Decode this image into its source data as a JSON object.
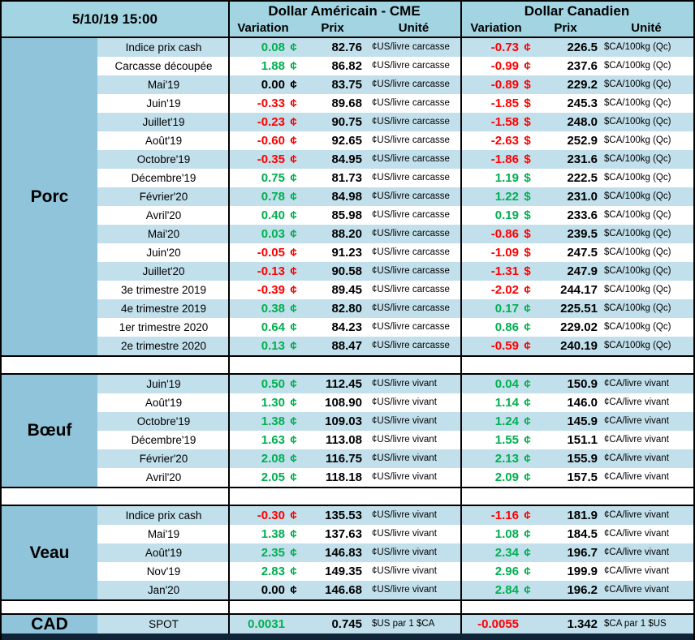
{
  "header": {
    "date": "5/10/19 15:00",
    "groups": [
      {
        "title": "Dollar Américain - CME",
        "columns": [
          "Variation",
          "Prix",
          "Unité"
        ]
      },
      {
        "title": "Dollar Canadien",
        "columns": [
          "Variation",
          "Prix",
          "Unité"
        ]
      }
    ]
  },
  "colors": {
    "positive": "#00B050",
    "negative": "#FF0000",
    "zero": "#000000",
    "header_bg": "#A2D4E2",
    "section_bg": "#8FC4DA",
    "stripe_bg": "#C2E0EC",
    "navy_bar": "#0F2437"
  },
  "chart_data": {
    "type": "table",
    "title": "5/10/19 15:00",
    "column_groups": [
      "Dollar Américain - CME",
      "Dollar Canadien"
    ],
    "columns": [
      "Variation",
      "Prix",
      "Unité",
      "Variation",
      "Prix",
      "Unité"
    ],
    "sections": [
      {
        "name": "Porc",
        "rows": [
          {
            "label": "Indice prix cash",
            "us_var": "0.08",
            "us_sym": "¢",
            "us_prix": "82.76",
            "us_unit": "¢US/livre carcasse",
            "ca_var": "-0.73",
            "ca_sym": "¢",
            "ca_prix": "226.5",
            "ca_unit": "$CA/100kg (Qc)"
          },
          {
            "label": "Carcasse découpée",
            "us_var": "1.88",
            "us_sym": "¢",
            "us_prix": "86.82",
            "us_unit": "¢US/livre carcasse",
            "ca_var": "-0.99",
            "ca_sym": "¢",
            "ca_prix": "237.6",
            "ca_unit": "$CA/100kg (Qc)"
          },
          {
            "label": "Mai'19",
            "us_var": "0.00",
            "us_sym": "¢",
            "us_prix": "83.75",
            "us_unit": "¢US/livre carcasse",
            "ca_var": "-0.89",
            "ca_sym": "$",
            "ca_prix": "229.2",
            "ca_unit": "$CA/100kg (Qc)"
          },
          {
            "label": "Juin'19",
            "us_var": "-0.33",
            "us_sym": "¢",
            "us_prix": "89.68",
            "us_unit": "¢US/livre carcasse",
            "ca_var": "-1.85",
            "ca_sym": "$",
            "ca_prix": "245.3",
            "ca_unit": "$CA/100kg (Qc)"
          },
          {
            "label": "Juillet'19",
            "us_var": "-0.23",
            "us_sym": "¢",
            "us_prix": "90.75",
            "us_unit": "¢US/livre carcasse",
            "ca_var": "-1.58",
            "ca_sym": "$",
            "ca_prix": "248.0",
            "ca_unit": "$CA/100kg (Qc)"
          },
          {
            "label": "Août'19",
            "us_var": "-0.60",
            "us_sym": "¢",
            "us_prix": "92.65",
            "us_unit": "¢US/livre carcasse",
            "ca_var": "-2.63",
            "ca_sym": "$",
            "ca_prix": "252.9",
            "ca_unit": "$CA/100kg (Qc)"
          },
          {
            "label": "Octobre'19",
            "us_var": "-0.35",
            "us_sym": "¢",
            "us_prix": "84.95",
            "us_unit": "¢US/livre carcasse",
            "ca_var": "-1.86",
            "ca_sym": "$",
            "ca_prix": "231.6",
            "ca_unit": "$CA/100kg (Qc)"
          },
          {
            "label": "Décembre'19",
            "us_var": "0.75",
            "us_sym": "¢",
            "us_prix": "81.73",
            "us_unit": "¢US/livre carcasse",
            "ca_var": "1.19",
            "ca_sym": "$",
            "ca_prix": "222.5",
            "ca_unit": "$CA/100kg (Qc)"
          },
          {
            "label": "Février'20",
            "us_var": "0.78",
            "us_sym": "¢",
            "us_prix": "84.98",
            "us_unit": "¢US/livre carcasse",
            "ca_var": "1.22",
            "ca_sym": "$",
            "ca_prix": "231.0",
            "ca_unit": "$CA/100kg (Qc)"
          },
          {
            "label": "Avril'20",
            "us_var": "0.40",
            "us_sym": "¢",
            "us_prix": "85.98",
            "us_unit": "¢US/livre carcasse",
            "ca_var": "0.19",
            "ca_sym": "$",
            "ca_prix": "233.6",
            "ca_unit": "$CA/100kg (Qc)"
          },
          {
            "label": "Mai'20",
            "us_var": "0.03",
            "us_sym": "¢",
            "us_prix": "88.20",
            "us_unit": "¢US/livre carcasse",
            "ca_var": "-0.86",
            "ca_sym": "$",
            "ca_prix": "239.5",
            "ca_unit": "$CA/100kg (Qc)"
          },
          {
            "label": "Juin'20",
            "us_var": "-0.05",
            "us_sym": "¢",
            "us_prix": "91.23",
            "us_unit": "¢US/livre carcasse",
            "ca_var": "-1.09",
            "ca_sym": "$",
            "ca_prix": "247.5",
            "ca_unit": "$CA/100kg (Qc)"
          },
          {
            "label": "Juillet'20",
            "us_var": "-0.13",
            "us_sym": "¢",
            "us_prix": "90.58",
            "us_unit": "¢US/livre carcasse",
            "ca_var": "-1.31",
            "ca_sym": "$",
            "ca_prix": "247.9",
            "ca_unit": "$CA/100kg (Qc)"
          },
          {
            "label": "3e trimestre 2019",
            "us_var": "-0.39",
            "us_sym": "¢",
            "us_prix": "89.45",
            "us_unit": "¢US/livre carcasse",
            "ca_var": "-2.02",
            "ca_sym": "¢",
            "ca_prix": "244.17",
            "ca_unit": "$CA/100kg (Qc)"
          },
          {
            "label": "4e trimestre 2019",
            "us_var": "0.38",
            "us_sym": "¢",
            "us_prix": "82.80",
            "us_unit": "¢US/livre carcasse",
            "ca_var": "0.17",
            "ca_sym": "¢",
            "ca_prix": "225.51",
            "ca_unit": "$CA/100kg (Qc)"
          },
          {
            "label": "1er trimestre 2020",
            "us_var": "0.64",
            "us_sym": "¢",
            "us_prix": "84.23",
            "us_unit": "¢US/livre carcasse",
            "ca_var": "0.86",
            "ca_sym": "¢",
            "ca_prix": "229.02",
            "ca_unit": "$CA/100kg (Qc)"
          },
          {
            "label": "2e trimestre 2020",
            "us_var": "0.13",
            "us_sym": "¢",
            "us_prix": "88.47",
            "us_unit": "¢US/livre carcasse",
            "ca_var": "-0.59",
            "ca_sym": "¢",
            "ca_prix": "240.19",
            "ca_unit": "$CA/100kg (Qc)"
          }
        ]
      },
      {
        "name": "Bœuf",
        "rows": [
          {
            "label": "Juin'19",
            "us_var": "0.50",
            "us_sym": "¢",
            "us_prix": "112.45",
            "us_unit": "¢US/livre vivant",
            "ca_var": "0.04",
            "ca_sym": "¢",
            "ca_prix": "150.9",
            "ca_unit": "¢CA/livre vivant"
          },
          {
            "label": "Août'19",
            "us_var": "1.30",
            "us_sym": "¢",
            "us_prix": "108.90",
            "us_unit": "¢US/livre vivant",
            "ca_var": "1.14",
            "ca_sym": "¢",
            "ca_prix": "146.0",
            "ca_unit": "¢CA/livre vivant"
          },
          {
            "label": "Octobre'19",
            "us_var": "1.38",
            "us_sym": "¢",
            "us_prix": "109.03",
            "us_unit": "¢US/livre vivant",
            "ca_var": "1.24",
            "ca_sym": "¢",
            "ca_prix": "145.9",
            "ca_unit": "¢CA/livre vivant"
          },
          {
            "label": "Décembre'19",
            "us_var": "1.63",
            "us_sym": "¢",
            "us_prix": "113.08",
            "us_unit": "¢US/livre vivant",
            "ca_var": "1.55",
            "ca_sym": "¢",
            "ca_prix": "151.1",
            "ca_unit": "¢CA/livre vivant"
          },
          {
            "label": "Février'20",
            "us_var": "2.08",
            "us_sym": "¢",
            "us_prix": "116.75",
            "us_unit": "¢US/livre vivant",
            "ca_var": "2.13",
            "ca_sym": "¢",
            "ca_prix": "155.9",
            "ca_unit": "¢CA/livre vivant"
          },
          {
            "label": "Avril'20",
            "us_var": "2.05",
            "us_sym": "¢",
            "us_prix": "118.18",
            "us_unit": "¢US/livre vivant",
            "ca_var": "2.09",
            "ca_sym": "¢",
            "ca_prix": "157.5",
            "ca_unit": "¢CA/livre vivant"
          }
        ]
      },
      {
        "name": "Veau",
        "rows": [
          {
            "label": "Indice prix cash",
            "us_var": "-0.30",
            "us_sym": "¢",
            "us_prix": "135.53",
            "us_unit": "¢US/livre vivant",
            "ca_var": "-1.16",
            "ca_sym": "¢",
            "ca_prix": "181.9",
            "ca_unit": "¢CA/livre vivant"
          },
          {
            "label": "Mai'19",
            "us_var": "1.38",
            "us_sym": "¢",
            "us_prix": "137.63",
            "us_unit": "¢US/livre vivant",
            "ca_var": "1.08",
            "ca_sym": "¢",
            "ca_prix": "184.5",
            "ca_unit": "¢CA/livre vivant"
          },
          {
            "label": "Août'19",
            "us_var": "2.35",
            "us_sym": "¢",
            "us_prix": "146.83",
            "us_unit": "¢US/livre vivant",
            "ca_var": "2.34",
            "ca_sym": "¢",
            "ca_prix": "196.7",
            "ca_unit": "¢CA/livre vivant"
          },
          {
            "label": "Nov'19",
            "us_var": "2.83",
            "us_sym": "¢",
            "us_prix": "149.35",
            "us_unit": "¢US/livre vivant",
            "ca_var": "2.96",
            "ca_sym": "¢",
            "ca_prix": "199.9",
            "ca_unit": "¢CA/livre vivant"
          },
          {
            "label": "Jan'20",
            "us_var": "0.00",
            "us_sym": "¢",
            "us_prix": "146.68",
            "us_unit": "¢US/livre vivant",
            "ca_var": "2.84",
            "ca_sym": "¢",
            "ca_prix": "196.2",
            "ca_unit": "¢CA/livre vivant"
          }
        ]
      },
      {
        "name": "CAD",
        "rows": [
          {
            "label": "SPOT",
            "us_var": "0.0031",
            "us_sym": "",
            "us_prix": "0.745",
            "us_unit": "$US par 1 $CA",
            "ca_var": "-0.0055",
            "ca_sym": "",
            "ca_prix": "1.342",
            "ca_unit": "$CA par 1 $US"
          }
        ]
      }
    ]
  }
}
